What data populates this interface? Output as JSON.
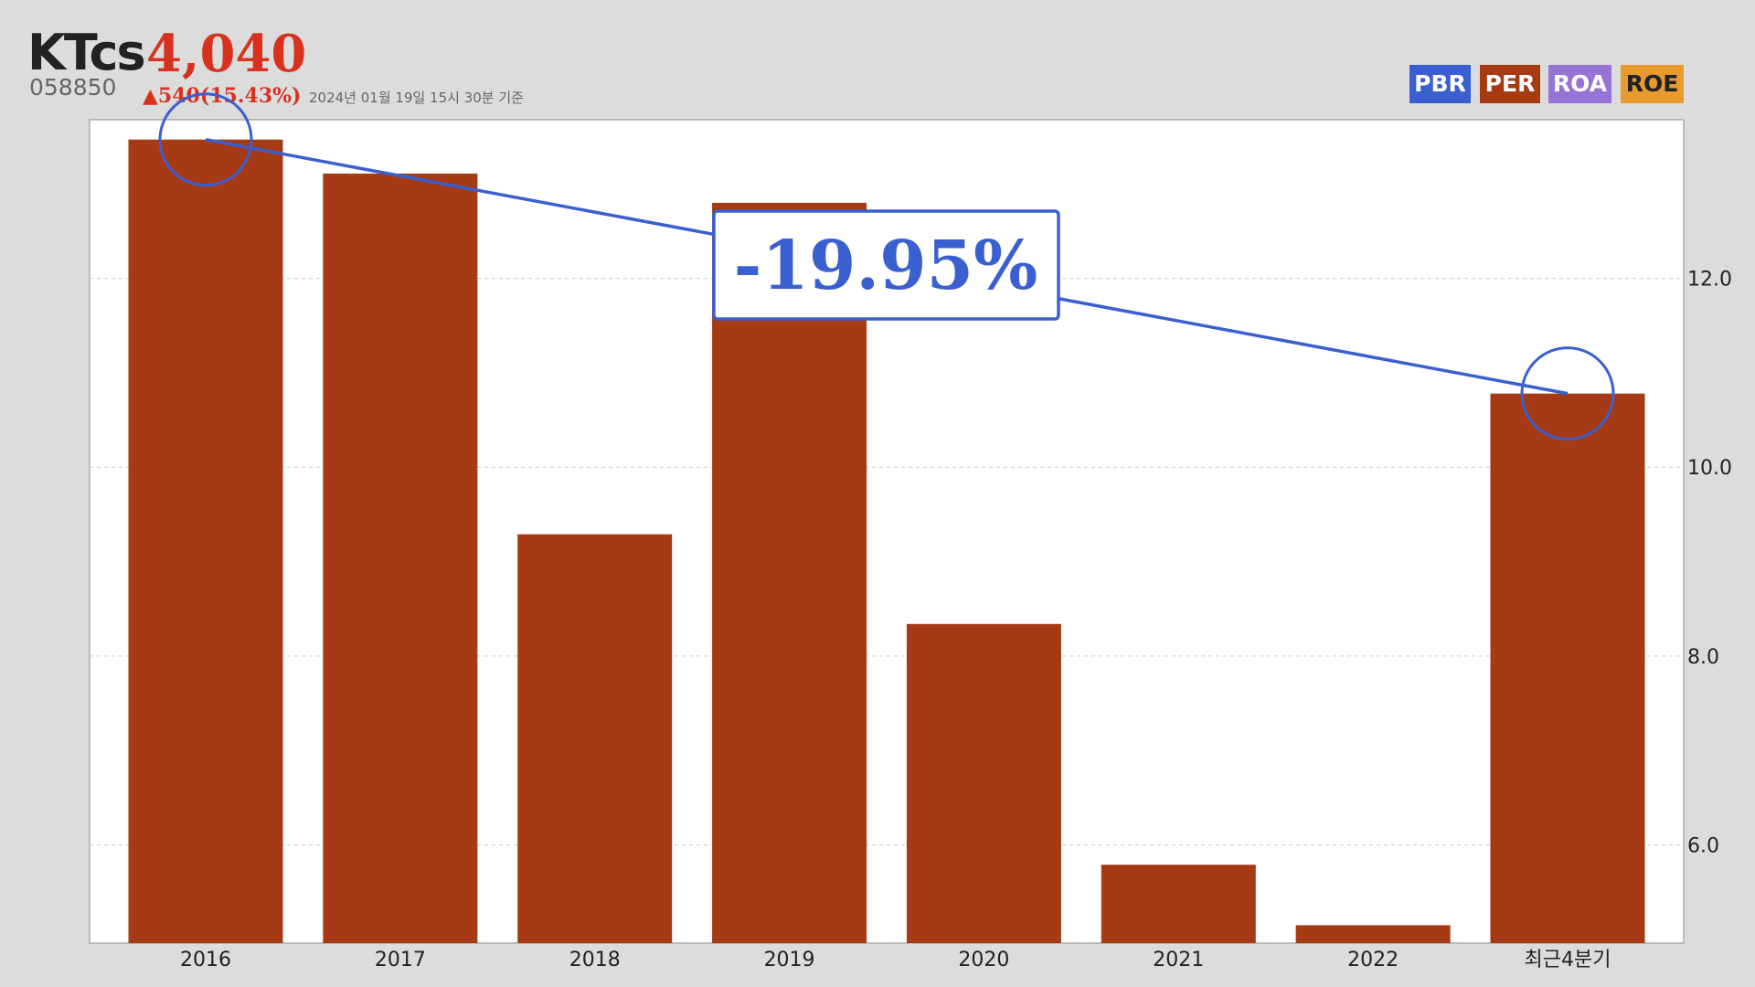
{
  "header": {
    "name": "KTcs",
    "price": "4,040",
    "code": "058850",
    "change": "▲540(15.43%)",
    "timestamp": "2024년 01월 19일 15시 30분 기준"
  },
  "tabs": [
    {
      "name": "PBR",
      "color": "#3a5fd0"
    },
    {
      "name": "PER",
      "color": "#a53a13"
    },
    {
      "name": "ROA",
      "color": "#9673d6"
    },
    {
      "name": "ROE",
      "color": "#e89a2e"
    }
  ],
  "chart_data": {
    "type": "bar",
    "categories": [
      "2016",
      "2017",
      "2018",
      "2019",
      "2020",
      "2021",
      "2022",
      "최근4분기"
    ],
    "values": [
      13.47,
      13.11,
      9.29,
      12.8,
      8.34,
      5.79,
      5.15,
      10.78
    ],
    "color": "#a63a14",
    "ylim": [
      4.96,
      13.68
    ],
    "yticks": [
      {
        "value": 6,
        "label": "6.0"
      },
      {
        "value": 8,
        "label": "8.0"
      },
      {
        "value": 10,
        "label": "10.0"
      },
      {
        "value": 12,
        "label": "12.0"
      }
    ],
    "grid": true,
    "annotation": {
      "text": "-19.95%",
      "color": "#3a5fd0"
    }
  }
}
